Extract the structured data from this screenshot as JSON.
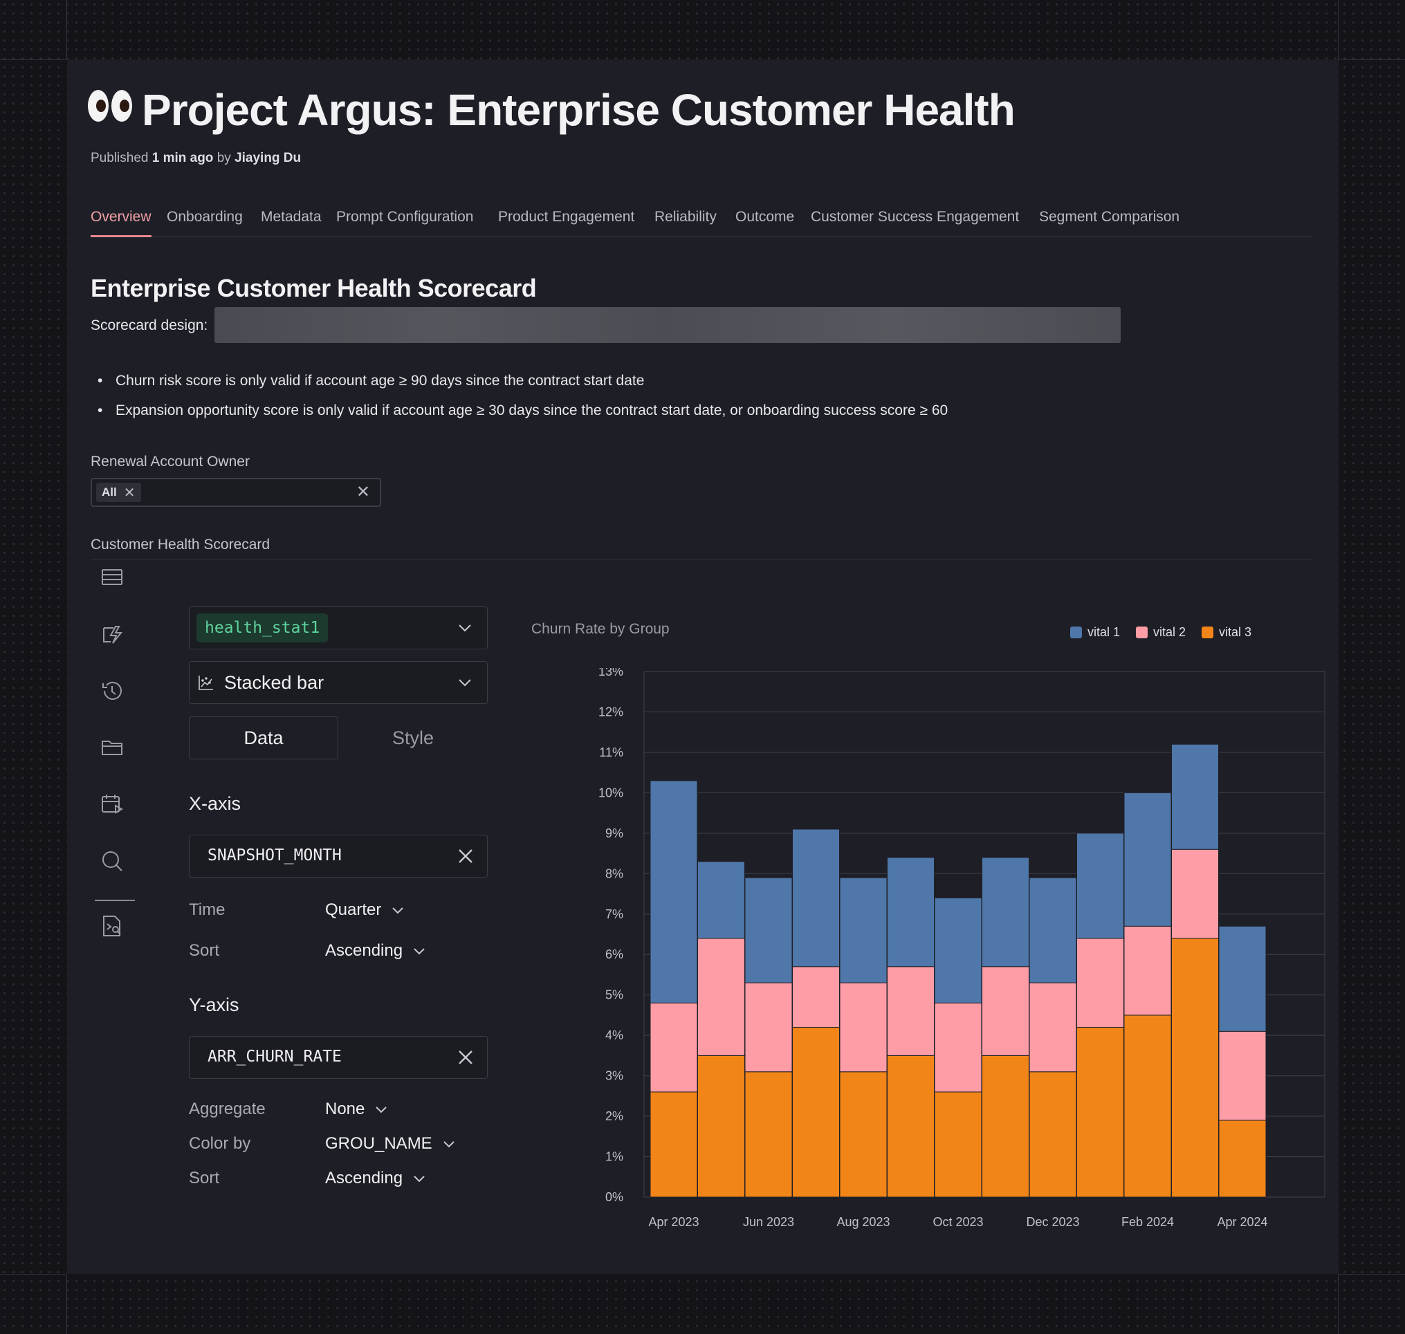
{
  "page": {
    "title": "Project Argus: Enterprise Customer Health",
    "title_emoji": "eyes-emoji",
    "published_prefix": "Published",
    "published_time": "1 min ago",
    "published_by_word": "by",
    "author": "Jiaying Du"
  },
  "tabs": [
    {
      "label": "Overview",
      "active": true
    },
    {
      "label": "Onboarding"
    },
    {
      "label": "Metadata"
    },
    {
      "label": "Prompt Configuration"
    },
    {
      "label": "Product Engagement"
    },
    {
      "label": "Reliability"
    },
    {
      "label": "Outcome"
    },
    {
      "label": "Customer Success Engagement"
    },
    {
      "label": "Segment Comparison"
    }
  ],
  "scorecard": {
    "heading": "Enterprise Customer Health Scorecard",
    "design_label": "Scorecard design:",
    "bullets": [
      "Churn risk score is only valid if account age ≥ 90 days since the contract start date",
      "Expansion opportunity score is only valid if account age ≥ 30 days since the contract start date, or onboarding success score ≥ 60"
    ]
  },
  "filter": {
    "label": "Renewal Account Owner",
    "chip": "All"
  },
  "section": {
    "label": "Customer Health Scorecard"
  },
  "sidebar_icons": [
    "table-icon",
    "lightning-icon",
    "history-icon",
    "folder-icon",
    "calendar-play-icon",
    "search-icon",
    "code-search-icon"
  ],
  "config": {
    "dataset": "health_stat1",
    "chart_type": "Stacked bar",
    "tab_data": "Data",
    "tab_style": "Style",
    "x_axis": {
      "heading": "X-axis",
      "field": "SNAPSHOT_MONTH",
      "time_label": "Time",
      "time_value": "Quarter",
      "sort_label": "Sort",
      "sort_value": "Ascending"
    },
    "y_axis": {
      "heading": "Y-axis",
      "field": "ARR_CHURN_RATE",
      "aggregate_label": "Aggregate",
      "aggregate_value": "None",
      "color_label": "Color by",
      "color_value": "GROU_NAME",
      "sort_label": "Sort",
      "sort_value": "Ascending"
    }
  },
  "colors": {
    "accent": "#e8868f",
    "vital1": "#4f77aa",
    "vital2": "#ff9da6",
    "vital3": "#f28518"
  },
  "chart_data": {
    "type": "bar",
    "stacked": true,
    "title": "Churn Rate by Group",
    "x": [
      "Apr 2023",
      "May 2023",
      "Jun 2023",
      "Jul 2023",
      "Aug 2023",
      "Sep 2023",
      "Oct 2023",
      "Nov 2023",
      "Dec 2023",
      "Jan 2024",
      "Feb 2024",
      "Mar 2024",
      "Apr 2024"
    ],
    "x_tick_labels": [
      "Apr 2023",
      "Jun 2023",
      "Aug 2023",
      "Oct 2023",
      "Dec 2023",
      "Feb 2024",
      "Apr 2024"
    ],
    "y_tick_labels": [
      "0%",
      "1%",
      "2%",
      "3%",
      "4%",
      "5%",
      "6%",
      "7%",
      "8%",
      "9%",
      "10%",
      "11%",
      "12%",
      "13%"
    ],
    "ylim": [
      0,
      13
    ],
    "y_unit": "%",
    "legend_position": "top-right",
    "grid": true,
    "series": [
      {
        "name": "vital 3",
        "color": "#f28518",
        "values": [
          2.6,
          3.5,
          3.1,
          4.2,
          3.1,
          3.5,
          2.6,
          3.5,
          3.1,
          4.2,
          4.5,
          6.4,
          1.9
        ]
      },
      {
        "name": "vital 2",
        "color": "#ff9da6",
        "values": [
          2.2,
          2.9,
          2.2,
          1.5,
          2.2,
          2.2,
          2.2,
          2.2,
          2.2,
          2.2,
          2.2,
          2.2,
          2.2
        ]
      },
      {
        "name": "vital 1",
        "color": "#4f77aa",
        "values": [
          5.5,
          1.9,
          2.6,
          3.4,
          2.6,
          2.7,
          2.6,
          2.7,
          2.6,
          2.6,
          3.3,
          2.6,
          2.6
        ]
      }
    ]
  }
}
